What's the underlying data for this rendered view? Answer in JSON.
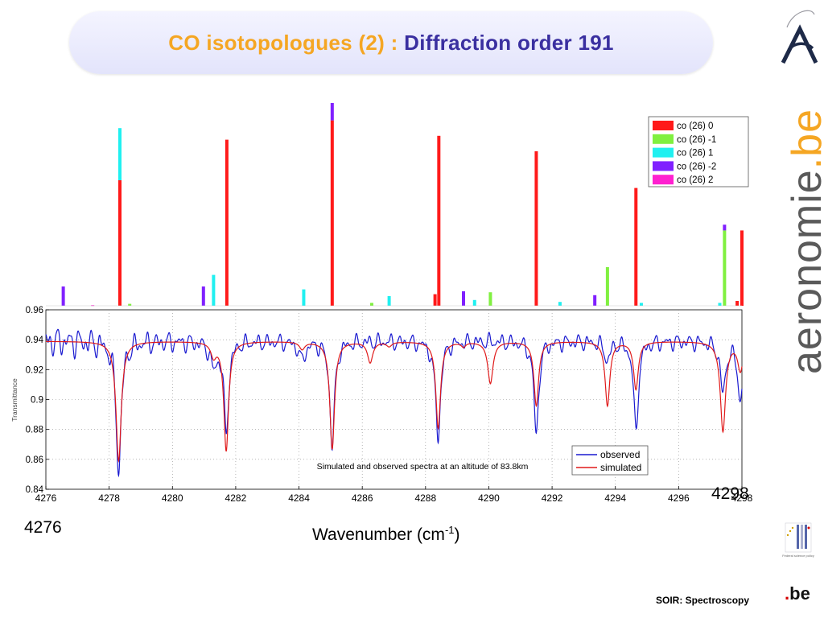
{
  "slide": {
    "title_part1": "CO isotopologues (2) : ",
    "title_part2": "Diffraction order 191",
    "footer": "SOIR: Spectroscopy",
    "brand_text": "aeronomie",
    "brand_dot": ".",
    "brand_tld": "be",
    "be_logo_text": "be",
    "be_logo_dot": ".",
    "federal_logo_text": "Federal science policy",
    "large_tick_left": "4276",
    "large_tick_right": "4298",
    "x_axis_title_base": "Wavenumber  (cm",
    "x_axis_title_sup": "-1",
    "x_axis_title_end": ")"
  },
  "chart_data": [
    {
      "type": "bar",
      "description": "Line intensities per isotopologue",
      "x_range": [
        4276,
        4298
      ],
      "legend": {
        "position": "top-right",
        "entries": [
          {
            "label": "co (26) 0",
            "color": "#ff1a1a"
          },
          {
            "label": "co (26) -1",
            "color": "#80f040"
          },
          {
            "label": "co (26) 1",
            "color": "#20f0f0"
          },
          {
            "label": "co (26) -2",
            "color": "#8020ff"
          },
          {
            "label": "co (26) 2",
            "color": "#ff20d0"
          }
        ]
      },
      "series_colors": {
        "0": "#ff1a1a",
        "-1": "#80f040",
        "1": "#20f0f0",
        "-2": "#8020ff",
        "2": "#ff20d0"
      },
      "lines": [
        {
          "x": 4276.55,
          "iso": "-2",
          "value": 0.1
        },
        {
          "x": 4277.48,
          "iso": "2",
          "value": 0.003
        },
        {
          "x": 4278.34,
          "iso": "0",
          "value": 0.65,
          "stacked": [
            {
              "iso": "1",
              "value": 0.27
            }
          ]
        },
        {
          "x": 4278.65,
          "iso": "-1",
          "value": 0.01
        },
        {
          "x": 4280.98,
          "iso": "-2",
          "value": 0.1
        },
        {
          "x": 4281.3,
          "iso": "1",
          "value": 0.16
        },
        {
          "x": 4281.72,
          "iso": "0",
          "value": 0.86
        },
        {
          "x": 4284.15,
          "iso": "1",
          "value": 0.085
        },
        {
          "x": 4285.05,
          "iso": "0",
          "value": 0.96,
          "stacked": [
            {
              "iso": "-2",
              "value": 0.09
            }
          ]
        },
        {
          "x": 4286.3,
          "iso": "-1",
          "value": 0.015
        },
        {
          "x": 4286.85,
          "iso": "1",
          "value": 0.05
        },
        {
          "x": 4288.3,
          "iso": "0",
          "value": 0.06
        },
        {
          "x": 4288.42,
          "iso": "0",
          "value": 0.88
        },
        {
          "x": 4289.2,
          "iso": "-2",
          "value": 0.075
        },
        {
          "x": 4289.55,
          "iso": "1",
          "value": 0.03
        },
        {
          "x": 4290.05,
          "iso": "-1",
          "value": 0.07
        },
        {
          "x": 4291.5,
          "iso": "0",
          "value": 0.8
        },
        {
          "x": 4292.25,
          "iso": "1",
          "value": 0.02
        },
        {
          "x": 4293.35,
          "iso": "-2",
          "value": 0.055
        },
        {
          "x": 4293.75,
          "iso": "-1",
          "value": 0.2
        },
        {
          "x": 4294.65,
          "iso": "0",
          "value": 0.61
        },
        {
          "x": 4294.82,
          "iso": "1",
          "value": 0.015
        },
        {
          "x": 4297.3,
          "iso": "1",
          "value": 0.015
        },
        {
          "x": 4297.45,
          "iso": "-1",
          "value": 0.39,
          "stacked": [
            {
              "iso": "-2",
              "value": 0.03
            }
          ]
        },
        {
          "x": 4297.85,
          "iso": "0",
          "value": 0.025
        },
        {
          "x": 4298.0,
          "iso": "0",
          "value": 0.39
        }
      ]
    },
    {
      "type": "line",
      "x_range": [
        4276,
        4298
      ],
      "ylim": [
        0.84,
        0.96
      ],
      "ylabel": "Transmittance",
      "x_ticks": [
        4276,
        4278,
        4280,
        4282,
        4284,
        4286,
        4288,
        4290,
        4292,
        4294,
        4296,
        4298
      ],
      "y_ticks": [
        0.84,
        0.86,
        0.88,
        0.9,
        0.92,
        0.94,
        0.96
      ],
      "x_tick_labels": [
        "4276",
        "4278",
        "4280",
        "4282",
        "4284",
        "4286",
        "4288",
        "4290",
        "4292",
        "4294",
        "4296",
        "4298"
      ],
      "y_tick_labels": [
        "0.84",
        "0.86",
        "0.88",
        "0.9",
        "0.92",
        "0.94",
        "0.96"
      ],
      "grid": true,
      "annotation": "Simulated and observed spectra at an altitude of 83.8km",
      "legend": {
        "position": "bottom-right",
        "entries": [
          "observed",
          "simulated"
        ]
      },
      "baseline": 0.939,
      "series": [
        {
          "name": "observed",
          "color": "#1a1ad0",
          "lines": [
            {
              "x": 4278.3,
              "depth": 0.085,
              "w": 0.1
            },
            {
              "x": 4281.7,
              "depth": 0.06,
              "w": 0.09
            },
            {
              "x": 4285.05,
              "depth": 0.07,
              "w": 0.09
            },
            {
              "x": 4288.4,
              "depth": 0.063,
              "w": 0.09
            },
            {
              "x": 4291.5,
              "depth": 0.062,
              "w": 0.09
            },
            {
              "x": 4294.65,
              "depth": 0.06,
              "w": 0.09
            },
            {
              "x": 4297.4,
              "depth": 0.034,
              "w": 0.1
            },
            {
              "x": 4297.95,
              "depth": 0.039,
              "w": 0.1
            },
            {
              "x": 4281.3,
              "depth": 0.016,
              "w": 0.12
            },
            {
              "x": 4284.1,
              "depth": 0.012,
              "w": 0.12
            },
            {
              "x": 4293.75,
              "depth": 0.013,
              "w": 0.1
            },
            {
              "x": 4288.25,
              "depth": 0.005,
              "w": 0.08
            }
          ],
          "noise": [
            {
              "amp": 0.004,
              "period": 0.35,
              "phase": 0.3
            },
            {
              "amp": 0.003,
              "period": 0.22,
              "phase": 1.5
            },
            {
              "amp": 0.0015,
              "period": 0.14,
              "phase": 2.2
            }
          ]
        },
        {
          "name": "simulated",
          "color": "#e01a1a",
          "lines": [
            {
              "x": 4278.3,
              "depth": 0.08,
              "w": 0.1
            },
            {
              "x": 4281.7,
              "depth": 0.073,
              "w": 0.09
            },
            {
              "x": 4285.05,
              "depth": 0.072,
              "w": 0.09
            },
            {
              "x": 4288.4,
              "depth": 0.058,
              "w": 0.09
            },
            {
              "x": 4291.5,
              "depth": 0.043,
              "w": 0.09
            },
            {
              "x": 4294.65,
              "depth": 0.032,
              "w": 0.09
            },
            {
              "x": 4297.4,
              "depth": 0.06,
              "w": 0.1
            },
            {
              "x": 4297.95,
              "depth": 0.019,
              "w": 0.1
            },
            {
              "x": 4281.3,
              "depth": 0.009,
              "w": 0.1
            },
            {
              "x": 4284.1,
              "depth": 0.005,
              "w": 0.1
            },
            {
              "x": 4286.25,
              "depth": 0.014,
              "w": 0.1
            },
            {
              "x": 4286.85,
              "depth": 0.003,
              "w": 0.1
            },
            {
              "x": 4290.05,
              "depth": 0.028,
              "w": 0.1
            },
            {
              "x": 4293.75,
              "depth": 0.043,
              "w": 0.09
            },
            {
              "x": 4289.2,
              "depth": 0.003,
              "w": 0.08
            }
          ]
        }
      ]
    }
  ]
}
